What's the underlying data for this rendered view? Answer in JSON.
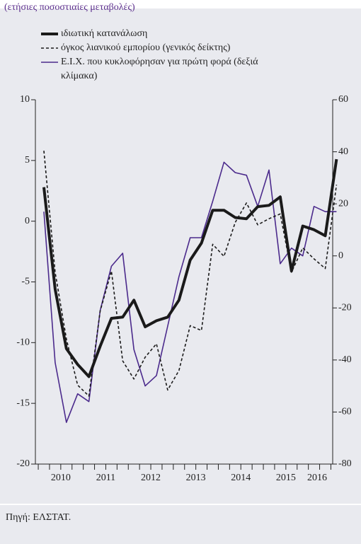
{
  "chart_data": {
    "type": "line",
    "subtitle": "(ετήσιες ποσοστιαίες μεταβολές)",
    "source": "Πηγή: ΕΛΣΤΑΤ.",
    "year_labels": [
      "2010",
      "2011",
      "2012",
      "2013",
      "2014",
      "2015",
      "2016"
    ],
    "quarters_per_year": 4,
    "ylim": [
      -20,
      10
    ],
    "yticks": [
      -20,
      -15,
      -10,
      -5,
      0,
      5,
      10
    ],
    "y2lim": [
      -80,
      60
    ],
    "y2ticks": [
      -80,
      -60,
      -40,
      -20,
      0,
      20,
      40,
      60
    ],
    "series": [
      {
        "name": "ιδιωτική κατανάλωση",
        "color": "#1a1a1a",
        "style": "solid-thick",
        "values": [
          2.8,
          -5.6,
          -10.5,
          -11.8,
          -12.8,
          -10.3,
          -8.0,
          -7.9,
          -6.5,
          -8.7,
          -8.2,
          -7.9,
          -6.5,
          -3.2,
          -1.8,
          0.9,
          0.9,
          0.3,
          0.2,
          1.2,
          1.3,
          2.0,
          -4.1,
          -0.4,
          -0.7,
          -1.2,
          5.1
        ]
      },
      {
        "name": "όγκος λιανικού εμπορίου (γενικός δείκτης)",
        "color": "#1a1a1a",
        "style": "dashed",
        "values": [
          5.8,
          -4.2,
          -9.7,
          -13.5,
          -14.4,
          -7.4,
          -4.1,
          -11.5,
          -13.0,
          -11.2,
          -10.1,
          -13.9,
          -12.3,
          -8.6,
          -9.0,
          -1.9,
          -2.9,
          -0.1,
          1.5,
          -0.3,
          0.2,
          0.6,
          -4.2,
          -2.2,
          -3.1,
          -3.9,
          3.0
        ]
      },
      {
        "name": "Ε.Ι.Χ. που κυκλοφόρησαν για πρώτη φορά (δεξιά κλίμακα)",
        "color": "#4b2a8c",
        "style": "solid",
        "axis": "y2",
        "values": [
          17,
          -41,
          -64,
          -53,
          -56,
          -21,
          -4,
          1,
          -36,
          -50,
          -46,
          -27,
          -8,
          7,
          7,
          21,
          36,
          32,
          31,
          19,
          33,
          -3,
          3,
          0,
          19,
          17,
          17
        ]
      }
    ]
  }
}
